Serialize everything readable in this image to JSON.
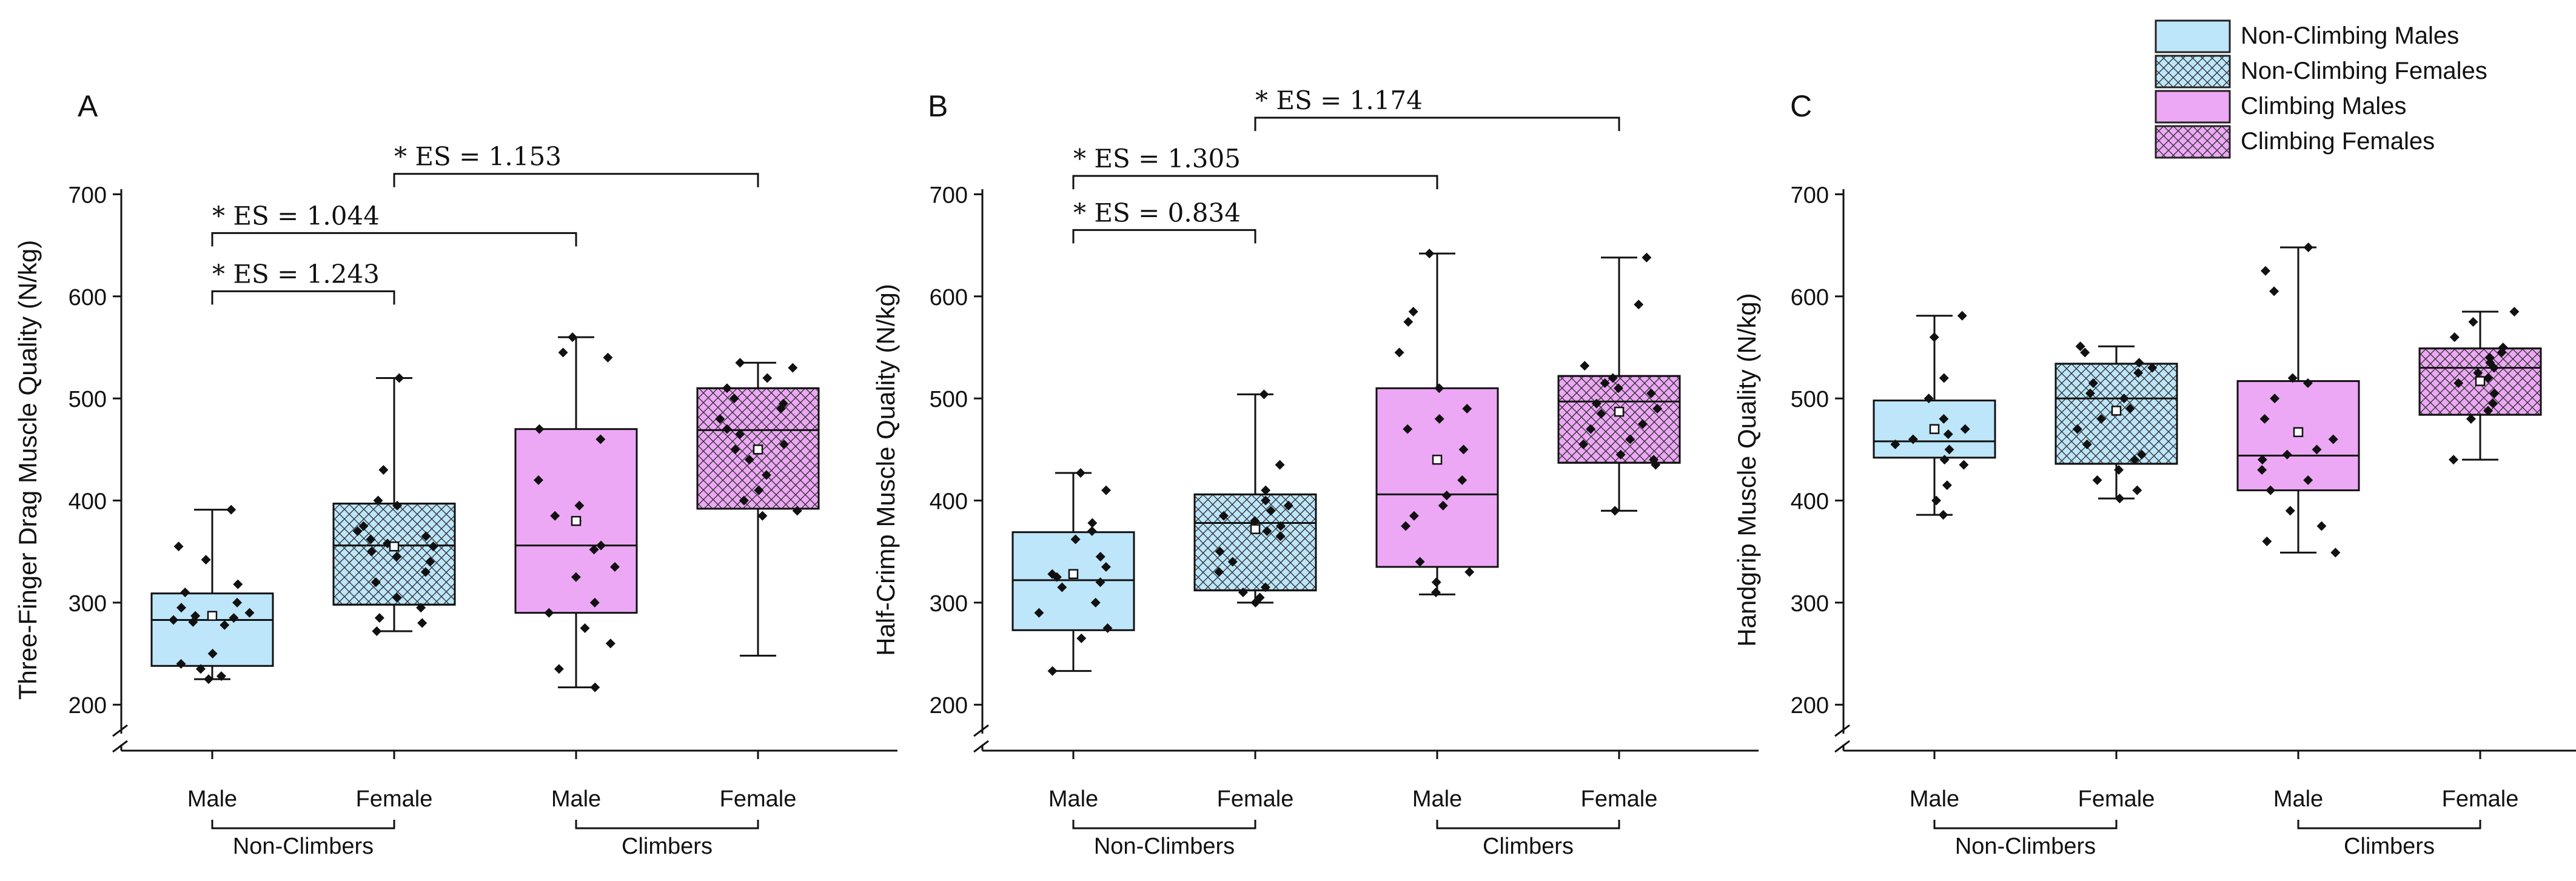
{
  "legend": {
    "entries": [
      {
        "label": "Non-Climbing Males",
        "fill": "#BDE6FB",
        "hatch": false
      },
      {
        "label": "Non-Climbing Females",
        "fill": "#BDE6FB",
        "hatch": true
      },
      {
        "label": "Climbing Males",
        "fill": "#EDA8F5",
        "hatch": false
      },
      {
        "label": "Climbing Females",
        "fill": "#EDA8F5",
        "hatch": true
      }
    ]
  },
  "colors": {
    "non_climber": "#BDE6FB",
    "climber": "#EDA8F5",
    "hatch": "#333333",
    "axis": "#111111"
  },
  "chart_data": [
    {
      "panel": "A",
      "type": "box",
      "ylabel": "Three-Finger Drag Muscle Quality (N/kg)",
      "ylim": [
        155,
        705
      ],
      "yticks": [
        200,
        300,
        400,
        500,
        600,
        700
      ],
      "categories": [
        "Male",
        "Female",
        "Male",
        "Female"
      ],
      "groups": [
        {
          "label": "Non-Climbers",
          "from": 0,
          "to": 1
        },
        {
          "label": "Climbers",
          "from": 2,
          "to": 3
        }
      ],
      "boxes": [
        {
          "min": 225,
          "q1": 238,
          "median": 283,
          "q3": 309,
          "max": 391,
          "mean": 287,
          "points": [
            391,
            355,
            342,
            318,
            310,
            300,
            295,
            290,
            287,
            285,
            283,
            281,
            278,
            250,
            240,
            235,
            228,
            225
          ]
        },
        {
          "min": 272,
          "q1": 298,
          "median": 356,
          "q3": 397,
          "max": 520,
          "mean": 355,
          "points": [
            520,
            430,
            400,
            395,
            375,
            370,
            365,
            362,
            358,
            355,
            350,
            345,
            340,
            330,
            320,
            305,
            295,
            285,
            280,
            272
          ]
        },
        {
          "min": 217,
          "q1": 290,
          "median": 356,
          "q3": 470,
          "max": 560,
          "mean": 380,
          "points": [
            560,
            545,
            540,
            470,
            460,
            420,
            395,
            385,
            380,
            356,
            352,
            335,
            325,
            300,
            290,
            275,
            260,
            235,
            217
          ]
        },
        {
          "min": 248,
          "q1": 392,
          "median": 469,
          "q3": 510,
          "max": 535,
          "mean": 450,
          "points": [
            535,
            530,
            520,
            510,
            500,
            495,
            490,
            480,
            470,
            465,
            455,
            450,
            440,
            425,
            410,
            400,
            390,
            385
          ]
        }
      ],
      "significance": [
        {
          "label": "* ES = 1.243",
          "from": 0,
          "to": 1,
          "y": 605
        },
        {
          "label": "* ES = 1.044",
          "from": 0,
          "to": 2,
          "y": 662
        },
        {
          "label": "* ES = 1.153",
          "from": 1,
          "to": 3,
          "y": 720
        }
      ]
    },
    {
      "panel": "B",
      "type": "box",
      "ylabel": "Half-Crimp Muscle Quality (N/kg)",
      "ylim": [
        155,
        705
      ],
      "yticks": [
        200,
        300,
        400,
        500,
        600,
        700
      ],
      "categories": [
        "Male",
        "Female",
        "Male",
        "Female"
      ],
      "groups": [
        {
          "label": "Non-Climbers",
          "from": 0,
          "to": 1
        },
        {
          "label": "Climbers",
          "from": 2,
          "to": 3
        }
      ],
      "boxes": [
        {
          "min": 233,
          "q1": 273,
          "median": 322,
          "q3": 369,
          "max": 427,
          "mean": 328,
          "points": [
            427,
            410,
            378,
            370,
            362,
            345,
            335,
            328,
            325,
            320,
            315,
            300,
            290,
            275,
            265,
            233
          ]
        },
        {
          "min": 300,
          "q1": 312,
          "median": 378,
          "q3": 406,
          "max": 504,
          "mean": 372,
          "points": [
            504,
            435,
            410,
            400,
            395,
            390,
            385,
            380,
            375,
            370,
            365,
            350,
            340,
            330,
            315,
            310,
            305,
            300
          ]
        },
        {
          "min": 308,
          "q1": 335,
          "median": 406,
          "q3": 510,
          "max": 642,
          "mean": 440,
          "points": [
            642,
            585,
            575,
            545,
            510,
            490,
            480,
            470,
            450,
            420,
            405,
            395,
            385,
            375,
            340,
            330,
            320,
            310
          ]
        },
        {
          "min": 390,
          "q1": 437,
          "median": 497,
          "q3": 522,
          "max": 638,
          "mean": 487,
          "points": [
            638,
            592,
            532,
            520,
            515,
            510,
            505,
            495,
            490,
            485,
            475,
            470,
            460,
            455,
            445,
            440,
            435,
            390
          ]
        }
      ],
      "significance": [
        {
          "label": "* ES = 0.834",
          "from": 0,
          "to": 1,
          "y": 665
        },
        {
          "label": "* ES = 1.305",
          "from": 0,
          "to": 2,
          "y": 718
        },
        {
          "label": "* ES = 1.174",
          "from": 1,
          "to": 3,
          "y": 775
        }
      ]
    },
    {
      "panel": "C",
      "type": "box",
      "ylabel": "Handgrip Muscle Quality (N/kg)",
      "ylim": [
        155,
        705
      ],
      "yticks": [
        200,
        300,
        400,
        500,
        600,
        700
      ],
      "categories": [
        "Male",
        "Female",
        "Male",
        "Female"
      ],
      "groups": [
        {
          "label": "Non-Climbers",
          "from": 0,
          "to": 1
        },
        {
          "label": "Climbers",
          "from": 2,
          "to": 3
        }
      ],
      "boxes": [
        {
          "min": 386,
          "q1": 442,
          "median": 458,
          "q3": 498,
          "max": 581,
          "mean": 470,
          "points": [
            581,
            560,
            520,
            500,
            480,
            470,
            465,
            460,
            455,
            450,
            440,
            435,
            415,
            400,
            386
          ]
        },
        {
          "min": 402,
          "q1": 436,
          "median": 500,
          "q3": 534,
          "max": 551,
          "mean": 488,
          "points": [
            551,
            545,
            535,
            530,
            525,
            515,
            505,
            500,
            490,
            480,
            470,
            455,
            445,
            440,
            430,
            420,
            410,
            402
          ]
        },
        {
          "min": 349,
          "q1": 410,
          "median": 444,
          "q3": 517,
          "max": 648,
          "mean": 467,
          "points": [
            648,
            625,
            605,
            520,
            515,
            500,
            480,
            460,
            450,
            445,
            440,
            430,
            420,
            410,
            390,
            375,
            360,
            349
          ]
        },
        {
          "min": 440,
          "q1": 484,
          "median": 530,
          "q3": 549,
          "max": 585,
          "mean": 517,
          "points": [
            585,
            575,
            560,
            550,
            545,
            540,
            535,
            530,
            525,
            520,
            515,
            505,
            495,
            488,
            480,
            440
          ]
        }
      ],
      "significance": []
    }
  ]
}
